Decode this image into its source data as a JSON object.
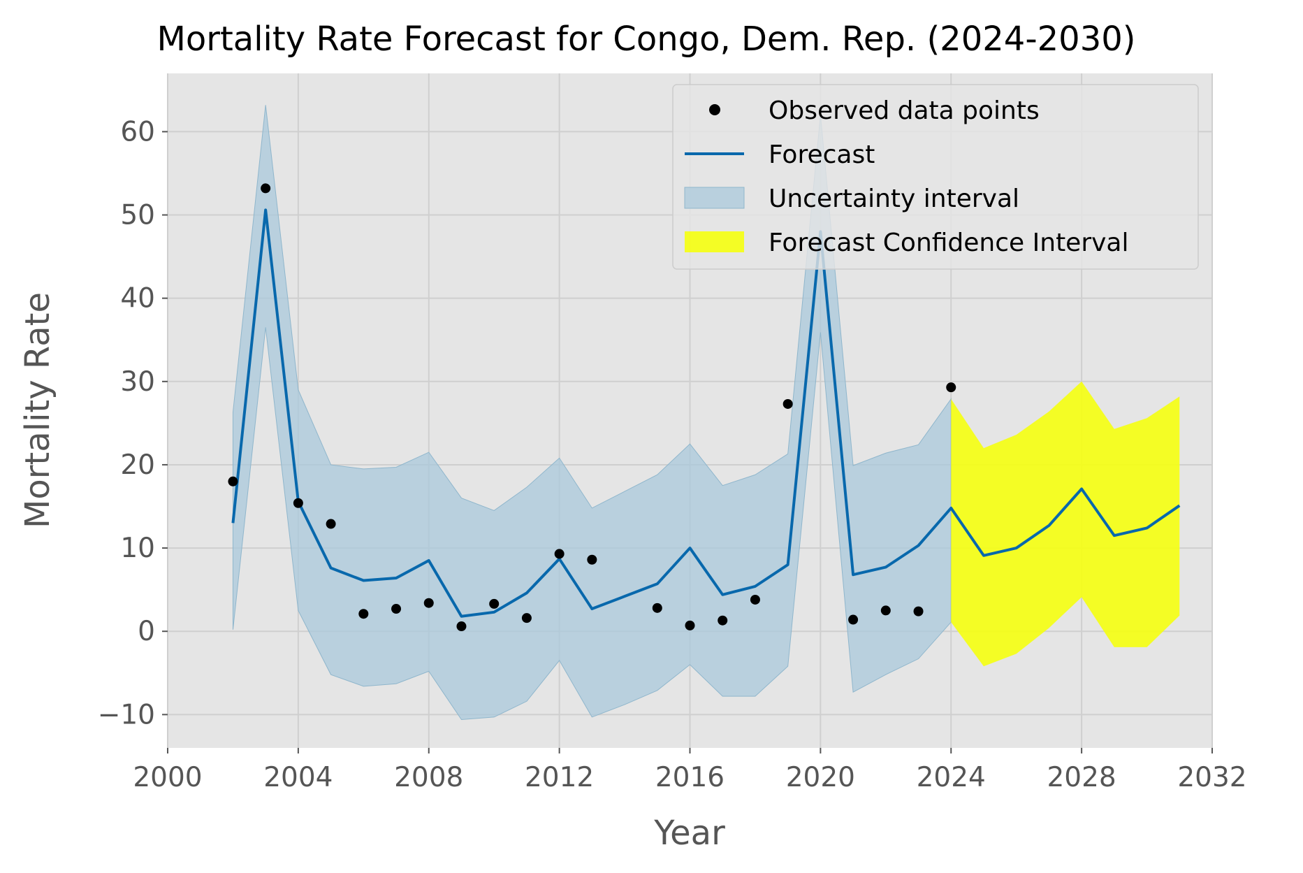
{
  "chart_data": {
    "type": "line",
    "title": "Mortality Rate Forecast for Congo, Dem. Rep. (2024-2030)",
    "xlabel": "Year",
    "ylabel": "Mortality Rate",
    "xlim": [
      2000,
      2032
    ],
    "ylim": [
      -14,
      67
    ],
    "x_ticks": [
      2000,
      2004,
      2008,
      2012,
      2016,
      2020,
      2024,
      2028,
      2032
    ],
    "x_tick_labels": [
      "2000",
      "2004",
      "2008",
      "2012",
      "2016",
      "2020",
      "2024",
      "2028",
      "2032"
    ],
    "y_ticks": [
      -10,
      0,
      10,
      20,
      30,
      40,
      50,
      60
    ],
    "y_tick_labels": [
      "−10",
      "0",
      "10",
      "20",
      "30",
      "40",
      "50",
      "60"
    ],
    "grid": true,
    "legend_position": "top-right",
    "colors": {
      "background": "#e5e5e5",
      "grid": "#cfcfcf",
      "forecast_line": "#0868ac",
      "uncertainty_band": "#a6c8dc",
      "confidence_band": "#f5ff10",
      "points": "#000000"
    },
    "observed": {
      "name": "Observed data points",
      "x": [
        2002,
        2003,
        2004,
        2005,
        2006,
        2007,
        2008,
        2009,
        2010,
        2011,
        2012,
        2013,
        2015,
        2016,
        2017,
        2018,
        2019,
        2021,
        2022,
        2023,
        2024
      ],
      "y": [
        18.0,
        53.2,
        15.4,
        12.9,
        2.1,
        2.7,
        3.4,
        0.6,
        3.3,
        1.6,
        9.3,
        8.6,
        2.8,
        0.7,
        1.3,
        3.8,
        27.3,
        1.4,
        2.5,
        2.4,
        29.3
      ]
    },
    "forecast": {
      "name": "Forecast",
      "x": [
        2002,
        2003,
        2004,
        2005,
        2006,
        2007,
        2008,
        2009,
        2010,
        2011,
        2012,
        2013,
        2014,
        2015,
        2016,
        2017,
        2018,
        2019,
        2020,
        2021,
        2022,
        2023,
        2024,
        2025,
        2026,
        2027,
        2028,
        2029,
        2030,
        2031
      ],
      "y": [
        13.0,
        50.6,
        15.6,
        7.6,
        6.1,
        6.4,
        8.5,
        1.8,
        2.3,
        4.6,
        8.7,
        2.7,
        4.2,
        5.7,
        10.0,
        4.4,
        5.4,
        8.0,
        48.0,
        6.8,
        7.7,
        10.3,
        14.8,
        9.1,
        10.0,
        12.7,
        17.1,
        11.5,
        12.4,
        15.1
      ]
    },
    "uncertainty_interval": {
      "name": "Uncertainty interval",
      "x": [
        2002,
        2003,
        2004,
        2005,
        2006,
        2007,
        2008,
        2009,
        2010,
        2011,
        2012,
        2013,
        2014,
        2015,
        2016,
        2017,
        2018,
        2019,
        2020,
        2021,
        2022,
        2023,
        2024
      ],
      "lower": [
        0.2,
        36.5,
        2.5,
        -5.2,
        -6.6,
        -6.3,
        -4.8,
        -10.6,
        -10.3,
        -8.4,
        -3.5,
        -10.3,
        -8.8,
        -7.1,
        -4.0,
        -7.8,
        -7.8,
        -4.2,
        35.9,
        -7.3,
        -5.2,
        -3.3,
        1.1
      ],
      "upper": [
        26.3,
        63.2,
        29.0,
        20.0,
        19.5,
        19.7,
        21.5,
        16.0,
        14.5,
        17.3,
        20.8,
        14.8,
        16.8,
        18.8,
        22.5,
        17.5,
        18.8,
        21.3,
        62.0,
        19.9,
        21.4,
        22.4,
        27.9
      ]
    },
    "forecast_confidence_interval": {
      "name": "Forecast Confidence Interval",
      "x": [
        2024,
        2025,
        2026,
        2027,
        2028,
        2029,
        2030,
        2031
      ],
      "lower": [
        1.1,
        -4.2,
        -2.7,
        0.4,
        4.1,
        -1.9,
        -1.9,
        1.9
      ],
      "upper": [
        27.9,
        22.0,
        23.6,
        26.4,
        30.0,
        24.3,
        25.6,
        28.2
      ]
    }
  }
}
